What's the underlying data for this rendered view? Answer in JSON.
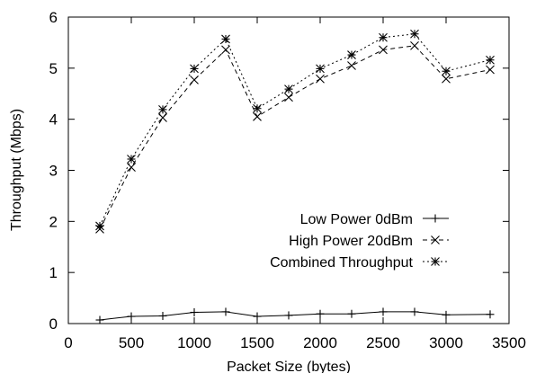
{
  "chart_data": {
    "type": "line",
    "title": "",
    "xlabel": "Packet Size (bytes)",
    "ylabel": "Throughput (Mbps)",
    "xlim": [
      0,
      3500
    ],
    "ylim": [
      0,
      6
    ],
    "x_ticks": [
      "0",
      "500",
      "1000",
      "1500",
      "2000",
      "2500",
      "3000",
      "3500"
    ],
    "y_ticks": [
      "0",
      "1",
      "2",
      "3",
      "4",
      "5",
      "6"
    ],
    "grid": false,
    "legend_position": "center-right",
    "x": [
      250,
      500,
      750,
      1000,
      1250,
      1500,
      1750,
      2000,
      2250,
      2500,
      2750,
      3000,
      3350
    ],
    "series": [
      {
        "name": "Low Power 0dBm",
        "marker": "plus",
        "dash": "solid",
        "values": [
          0.07,
          0.14,
          0.15,
          0.22,
          0.23,
          0.14,
          0.16,
          0.19,
          0.19,
          0.23,
          0.23,
          0.17,
          0.18
        ]
      },
      {
        "name": "High Power 20dBm",
        "marker": "cross",
        "dash": "dashed",
        "values": [
          1.85,
          3.06,
          4.03,
          4.77,
          5.36,
          4.05,
          4.43,
          4.79,
          5.05,
          5.36,
          5.44,
          4.79,
          4.97
        ]
      },
      {
        "name": "Combined Throughput",
        "marker": "star",
        "dash": "dotted",
        "values": [
          1.91,
          3.22,
          4.19,
          4.99,
          5.57,
          4.21,
          4.59,
          4.99,
          5.26,
          5.6,
          5.67,
          4.94,
          5.16
        ]
      }
    ]
  }
}
